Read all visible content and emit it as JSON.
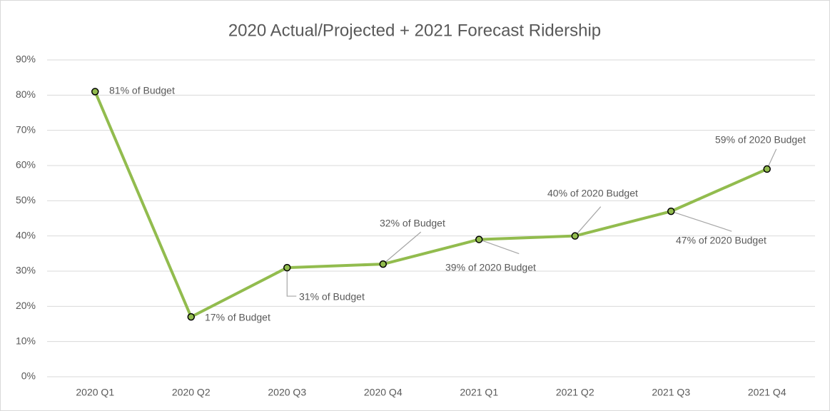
{
  "chart_data": {
    "type": "line",
    "title": "2020 Actual/Projected + 2021 Forecast Ridership",
    "categories": [
      "2020 Q1",
      "2020 Q2",
      "2020 Q3",
      "2020 Q4",
      "2021 Q1",
      "2021 Q2",
      "2021 Q3",
      "2021 Q4"
    ],
    "series": [
      {
        "color": "#92bc4e",
        "values": [
          81,
          17,
          31,
          32,
          39,
          40,
          47,
          59
        ],
        "value_labels": [
          "81% of Budget",
          "17% of Budget",
          "31% of Budget",
          "32% of Budget",
          "39% of 2020 Budget",
          "40% of 2020 Budget",
          "47% of 2020 Budget",
          "59% of 2020 Budget"
        ]
      }
    ],
    "ylim": [
      0,
      90
    ],
    "yticks": [
      {
        "value": 0,
        "label": "0%"
      },
      {
        "value": 10,
        "label": "10%"
      },
      {
        "value": 20,
        "label": "20%"
      },
      {
        "value": 30,
        "label": "30%"
      },
      {
        "value": 40,
        "label": "40%"
      },
      {
        "value": 50,
        "label": "50%"
      },
      {
        "value": 60,
        "label": "60%"
      },
      {
        "value": 70,
        "label": "70%"
      },
      {
        "value": 80,
        "label": "80%"
      },
      {
        "value": 90,
        "label": "90%"
      }
    ],
    "grid": true
  }
}
